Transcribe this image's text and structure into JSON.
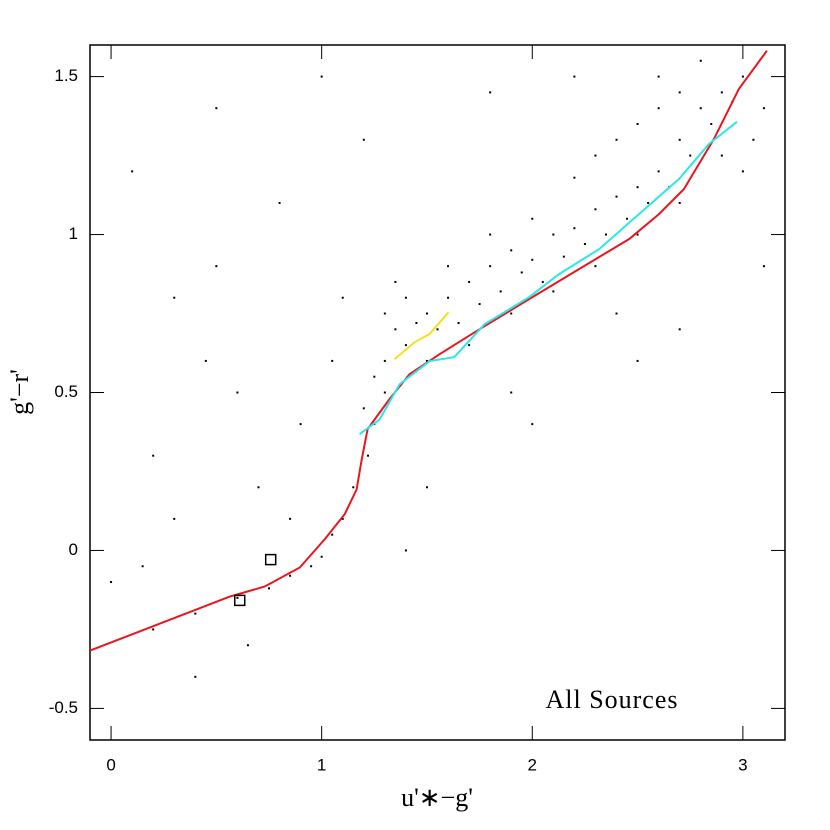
{
  "chart_data": {
    "type": "scatter",
    "xlabel": "u'∗−g'",
    "ylabel": "g'−r'",
    "annotation": "All Sources",
    "xlim": [
      -0.1,
      3.2
    ],
    "ylim": [
      -0.6,
      1.6
    ],
    "xticks": [
      0,
      1,
      2,
      3
    ],
    "yticks": [
      -0.5,
      0,
      0.5,
      1,
      1.5
    ],
    "color": "#000000",
    "x": [
      1.2,
      1.25,
      1.3,
      1.35,
      1.4,
      1.45,
      1.3,
      1.25,
      1.22,
      1.15,
      1.1,
      1.05,
      1.0,
      0.95,
      0.85,
      0.75,
      0.6,
      0.4,
      0.2,
      1.5,
      1.55,
      1.6,
      1.65,
      1.7,
      1.75,
      1.8,
      1.85,
      1.9,
      1.95,
      2.0,
      2.05,
      2.1,
      2.15,
      2.2,
      2.25,
      2.3,
      2.35,
      2.4,
      2.45,
      2.5,
      2.55,
      2.6,
      2.65,
      2.7,
      2.75,
      2.8,
      2.85,
      2.9,
      2.95,
      3.0,
      2.7,
      2.6,
      2.5,
      2.4,
      2.3,
      2.2,
      2.0,
      1.8,
      1.6,
      1.4,
      1.35,
      1.3,
      1.5,
      1.7,
      1.9,
      2.1,
      2.3,
      2.5,
      2.7,
      2.9,
      3.05,
      3.1,
      2.8,
      2.6,
      3.0,
      0.1,
      0.3,
      0.5,
      0.2,
      0.6,
      0.8,
      1.0,
      1.2,
      0.4,
      0.0,
      1.5,
      2.0,
      2.5,
      1.8,
      0.7,
      0.9,
      1.1,
      0.3,
      2.2,
      2.7,
      3.1,
      1.4,
      0.5,
      0.15,
      0.65,
      0.85,
      1.05,
      1.9,
      2.4,
      0.45
    ],
    "values": [
      0.45,
      0.55,
      0.6,
      0.7,
      0.65,
      0.72,
      0.5,
      0.4,
      0.3,
      0.2,
      0.1,
      0.05,
      -0.02,
      -0.05,
      -0.08,
      -0.12,
      -0.15,
      -0.2,
      -0.25,
      0.75,
      0.7,
      0.8,
      0.72,
      0.85,
      0.78,
      0.9,
      0.82,
      0.95,
      0.88,
      0.92,
      0.85,
      1.0,
      0.93,
      1.02,
      0.97,
      1.08,
      1.0,
      1.12,
      1.05,
      1.15,
      1.1,
      1.2,
      1.15,
      1.3,
      1.25,
      1.4,
      1.35,
      1.45,
      1.42,
      1.5,
      1.45,
      1.4,
      1.35,
      1.3,
      1.25,
      1.18,
      1.05,
      1.0,
      0.9,
      0.8,
      0.85,
      0.75,
      0.6,
      0.65,
      0.75,
      0.82,
      0.9,
      1.0,
      1.1,
      1.25,
      1.3,
      1.4,
      1.55,
      1.5,
      1.2,
      1.2,
      0.8,
      1.4,
      0.3,
      0.5,
      1.1,
      1.5,
      1.3,
      -0.4,
      -0.1,
      0.2,
      0.4,
      0.6,
      1.45,
      0.2,
      0.4,
      0.8,
      0.1,
      1.5,
      0.7,
      0.9,
      0.0,
      0.9,
      -0.05,
      -0.3,
      0.1,
      0.6,
      0.5,
      0.75,
      0.6
    ],
    "lines": [
      {
        "color": "#e8171d",
        "x": [
          -0.1,
          0.564,
          0.73,
          0.896,
          1.014,
          1.109,
          1.166,
          1.19,
          1.218,
          1.322,
          1.417,
          1.559,
          1.749,
          1.986,
          2.223,
          2.46,
          2.602,
          2.72,
          2.863,
          2.934,
          2.981,
          3.114
        ],
        "values": [
          -0.317,
          -0.146,
          -0.114,
          -0.054,
          0.035,
          0.114,
          0.193,
          0.288,
          0.384,
          0.479,
          0.558,
          0.621,
          0.7,
          0.796,
          0.891,
          0.986,
          1.065,
          1.144,
          1.303,
          1.398,
          1.461,
          1.582
        ]
      },
      {
        "color": "#2ee6e6",
        "x": [
          1.18,
          1.275,
          1.37,
          1.512,
          1.63,
          1.773,
          1.986,
          2.128,
          2.318,
          2.507,
          2.697,
          2.839,
          2.972
        ],
        "values": [
          0.368,
          0.415,
          0.526,
          0.599,
          0.612,
          0.716,
          0.802,
          0.875,
          0.954,
          1.065,
          1.176,
          1.287,
          1.357
        ]
      },
      {
        "color": "#f2e21a",
        "x": [
          1.346,
          1.441,
          1.512,
          1.602
        ],
        "values": [
          0.605,
          0.659,
          0.685,
          0.754
        ]
      }
    ],
    "markers": {
      "x": [
        0.758,
        0.611
      ],
      "values": [
        -0.029,
        -0.158
      ]
    }
  }
}
